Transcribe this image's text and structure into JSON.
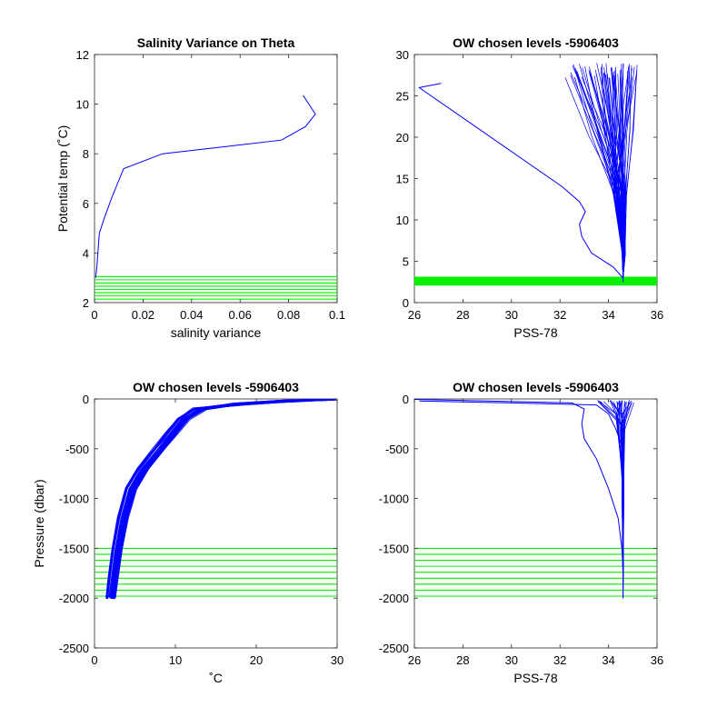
{
  "colors": {
    "profile": "#0000ff",
    "levels": "#00ee00",
    "axes": "#262626"
  },
  "chart_data": [
    {
      "type": "line",
      "title": "Salinity Variance on Theta",
      "xlabel": "salinity variance",
      "ylabel": "Potential temp (˚C)",
      "xlim": [
        0,
        0.1
      ],
      "ylim": [
        2,
        12
      ],
      "xticks": [
        0,
        0.02,
        0.04,
        0.06,
        0.08,
        0.1
      ],
      "xtick_labels": [
        "0",
        "0.02",
        "0.04",
        "0.06",
        "0.08",
        "0.1"
      ],
      "yticks": [
        2,
        4,
        6,
        8,
        10,
        12
      ],
      "ytick_labels": [
        "2",
        "4",
        "6",
        "8",
        "10",
        "12"
      ],
      "y_reversed": false,
      "series": [
        {
          "x": [
            0.0005,
            0.001,
            0.002,
            0.004,
            0.007,
            0.012,
            0.028,
            0.055,
            0.077,
            0.087,
            0.091,
            0.086
          ],
          "y": [
            3.0,
            3.5,
            4.8,
            5.4,
            6.2,
            7.4,
            8.0,
            8.3,
            8.55,
            9.1,
            9.6,
            10.35
          ]
        }
      ],
      "level_lines": [
        3.05,
        2.92,
        2.79,
        2.66,
        2.53,
        2.4,
        2.27,
        2.14
      ]
    },
    {
      "type": "line",
      "title": "OW chosen levels -5906403",
      "xlabel": "PSS-78",
      "ylabel": "",
      "xlim": [
        26,
        36
      ],
      "ylim": [
        0,
        30
      ],
      "xticks": [
        26,
        28,
        30,
        32,
        34,
        36
      ],
      "xtick_labels": [
        "26",
        "28",
        "30",
        "32",
        "34",
        "36"
      ],
      "yticks": [
        0,
        5,
        10,
        15,
        20,
        25,
        30
      ],
      "ytick_labels": [
        "0",
        "5",
        "10",
        "15",
        "20",
        "25",
        "30"
      ],
      "y_reversed": false,
      "series": [
        {
          "x": [
            27.1,
            26.2,
            32.1,
            32.8,
            33.05,
            32.8,
            32.9,
            33.3,
            34.2,
            34.5,
            34.6,
            34.6
          ],
          "y": [
            26.5,
            26.0,
            14.0,
            12.2,
            11.0,
            9.5,
            8.0,
            6.0,
            4.3,
            3.3,
            3.0,
            2.5
          ]
        }
      ],
      "bundle": {
        "top_t": [
          29,
          27.2
        ],
        "top_s": [
          32.2,
          35.2
        ],
        "mid_t": 13,
        "mid_s": [
          34.2,
          34.75
        ],
        "count": 60
      },
      "level_lines": [
        3.05,
        2.92,
        2.79,
        2.66,
        2.53,
        2.4,
        2.27,
        2.14
      ]
    },
    {
      "type": "line",
      "title": "OW chosen levels -5906403",
      "xlabel": "˚C",
      "ylabel": "Pressure (dbar)",
      "xlim": [
        0,
        30
      ],
      "ylim": [
        -2500,
        0
      ],
      "xticks": [
        0,
        10,
        20,
        30
      ],
      "xtick_labels": [
        "0",
        "10",
        "20",
        "30"
      ],
      "yticks": [
        -2500,
        -2000,
        -1500,
        -1000,
        -500,
        0
      ],
      "ytick_labels": [
        "-2500",
        "-2000",
        "-1500",
        "-1000",
        "-500",
        "0"
      ],
      "y_reversed": false,
      "series": [
        {
          "x": [
            2.0,
            2.3,
            2.8,
            3.5,
            4.5,
            6.0,
            8.0,
            9.5,
            11.0,
            13.0,
            18.0,
            24.0,
            29.0
          ],
          "y": [
            -2000,
            -1800,
            -1500,
            -1200,
            -900,
            -700,
            -500,
            -350,
            -200,
            -100,
            -50,
            -20,
            -5
          ]
        }
      ],
      "level_lines": [
        -1500,
        -1560,
        -1620,
        -1680,
        -1740,
        -1800,
        -1860,
        -1920,
        -1980
      ]
    },
    {
      "type": "line",
      "title": "OW chosen levels -5906403",
      "xlabel": "PSS-78",
      "ylabel": "",
      "xlim": [
        26,
        36
      ],
      "ylim": [
        -2500,
        0
      ],
      "xticks": [
        26,
        28,
        30,
        32,
        34,
        36
      ],
      "xtick_labels": [
        "26",
        "28",
        "30",
        "32",
        "34",
        "36"
      ],
      "yticks": [
        -2500,
        -2000,
        -1500,
        -1000,
        -500,
        0
      ],
      "ytick_labels": [
        "-2500",
        "-2000",
        "-1500",
        "-1000",
        "-500",
        "0"
      ],
      "y_reversed": false,
      "series": [
        {
          "x": [
            26.0,
            29.0,
            32.5,
            33.0,
            32.9,
            33.0,
            33.5,
            34.0,
            34.4,
            34.55,
            34.6,
            34.6
          ],
          "y": [
            -5,
            -20,
            -40,
            -100,
            -250,
            -400,
            -600,
            -900,
            -1200,
            -1500,
            -1700,
            -2000
          ]
        },
        {
          "x": [
            26.2,
            30.0,
            33.5,
            34.0,
            34.3,
            34.6,
            34.6,
            34.6
          ],
          "y": [
            -20,
            -40,
            -60,
            -150,
            -300,
            -500,
            -1000,
            -2000
          ]
        }
      ],
      "level_lines": [
        -1500,
        -1560,
        -1620,
        -1680,
        -1740,
        -1800,
        -1860,
        -1920,
        -1980
      ]
    }
  ]
}
